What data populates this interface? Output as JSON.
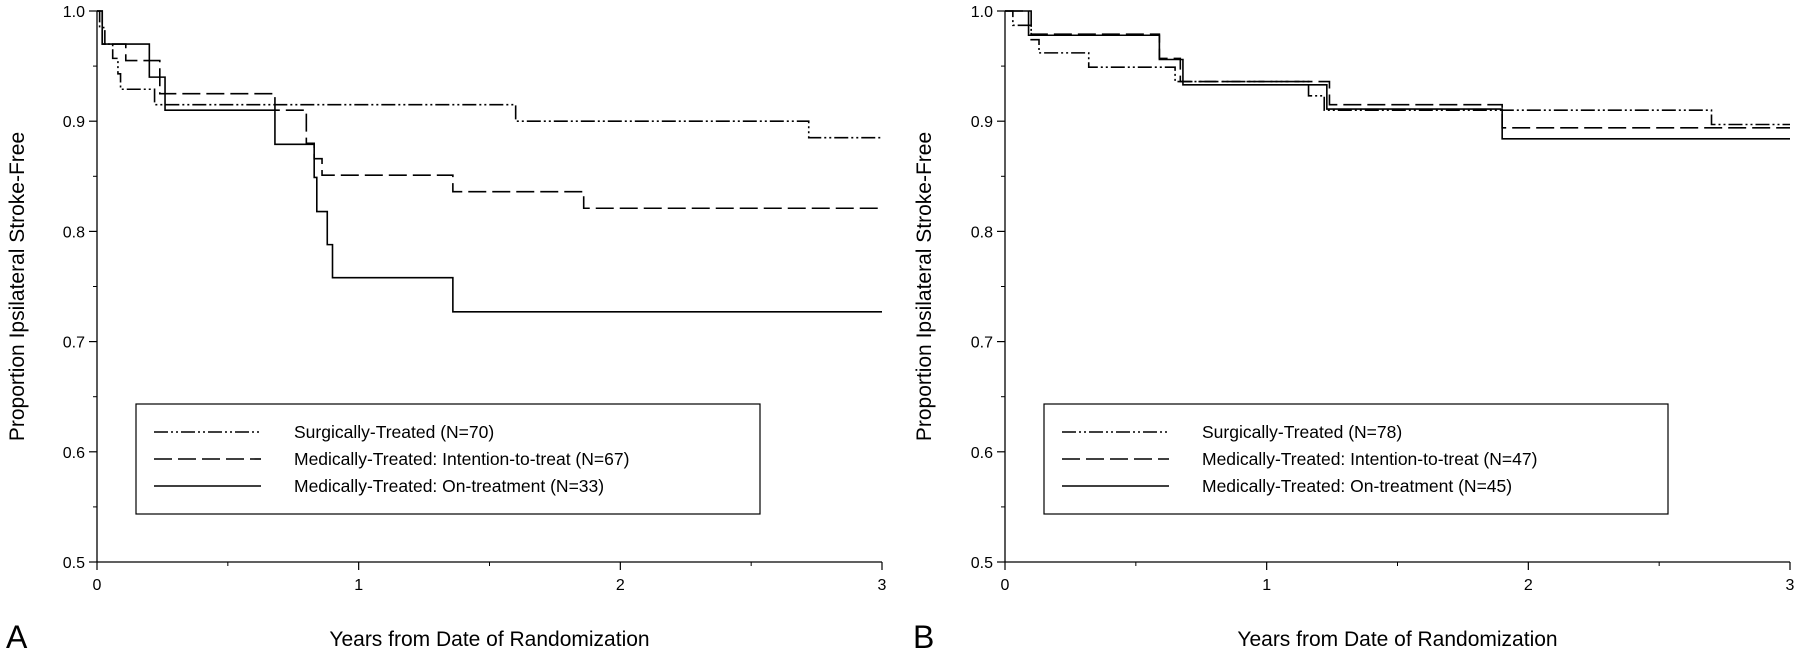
{
  "chart_data": [
    {
      "type": "line",
      "subtype": "step (Kaplan-Meier)",
      "panel_label": "A",
      "xlabel": "Years from Date of Randomization",
      "ylabel": "Proportion Ipsilateral Stroke-Free",
      "xlim": [
        0,
        3
      ],
      "ylim": [
        0.5,
        1.0
      ],
      "x_ticks": [
        "0",
        "1",
        "2",
        "3"
      ],
      "y_ticks": [
        "0.5",
        "0.6",
        "0.7",
        "0.8",
        "0.9",
        "1.0"
      ],
      "grid": false,
      "legend_position": "lower-left",
      "series": [
        {
          "name": "Surgically-Treated (N=70)",
          "style": "dash-dot-dot",
          "points": [
            [
              0,
              1.0
            ],
            [
              0.01,
              0.985
            ],
            [
              0.03,
              0.97
            ],
            [
              0.06,
              0.957
            ],
            [
              0.08,
              0.943
            ],
            [
              0.09,
              0.929
            ],
            [
              0.22,
              0.915
            ],
            [
              1.6,
              0.9
            ],
            [
              2.72,
              0.885
            ],
            [
              3.0,
              0.885
            ]
          ]
        },
        {
          "name": "Medically-Treated: Intention-to-treat (N=67)",
          "style": "long-dash",
          "points": [
            [
              0,
              1.0
            ],
            [
              0.02,
              0.97
            ],
            [
              0.11,
              0.955
            ],
            [
              0.24,
              0.925
            ],
            [
              0.68,
              0.91
            ],
            [
              0.8,
              0.88
            ],
            [
              0.83,
              0.866
            ],
            [
              0.86,
              0.851
            ],
            [
              1.36,
              0.836
            ],
            [
              1.86,
              0.821
            ],
            [
              3.0,
              0.821
            ]
          ]
        },
        {
          "name": "Medically-Treated: On-treatment (N=33)",
          "style": "solid",
          "points": [
            [
              0,
              1.0
            ],
            [
              0.02,
              0.97
            ],
            [
              0.2,
              0.94
            ],
            [
              0.26,
              0.91
            ],
            [
              0.68,
              0.879
            ],
            [
              0.83,
              0.849
            ],
            [
              0.84,
              0.818
            ],
            [
              0.88,
              0.788
            ],
            [
              0.9,
              0.758
            ],
            [
              1.36,
              0.727
            ],
            [
              3.0,
              0.727
            ]
          ]
        }
      ]
    },
    {
      "type": "line",
      "subtype": "step (Kaplan-Meier)",
      "panel_label": "B",
      "xlabel": "Years from Date of Randomization",
      "ylabel": "Proportion Ipsilateral Stroke-Free",
      "xlim": [
        0,
        3
      ],
      "ylim": [
        0.5,
        1.0
      ],
      "x_ticks": [
        "0",
        "1",
        "2",
        "3"
      ],
      "y_ticks": [
        "0.5",
        "0.6",
        "0.7",
        "0.8",
        "0.9",
        "1.0"
      ],
      "grid": false,
      "legend_position": "lower-left",
      "series": [
        {
          "name": "Surgically-Treated (N=78)",
          "style": "dash-dot-dot",
          "points": [
            [
              0,
              1.0
            ],
            [
              0.03,
              0.987
            ],
            [
              0.1,
              0.974
            ],
            [
              0.13,
              0.962
            ],
            [
              0.32,
              0.949
            ],
            [
              0.65,
              0.936
            ],
            [
              1.16,
              0.923
            ],
            [
              1.22,
              0.91
            ],
            [
              2.7,
              0.897
            ],
            [
              3.0,
              0.897
            ]
          ]
        },
        {
          "name": "Medically-Treated: Intention-to-treat (N=47)",
          "style": "long-dash",
          "points": [
            [
              0,
              1.0
            ],
            [
              0.1,
              0.979
            ],
            [
              0.59,
              0.957
            ],
            [
              0.67,
              0.936
            ],
            [
              1.24,
              0.915
            ],
            [
              1.9,
              0.894
            ],
            [
              3.0,
              0.894
            ]
          ]
        },
        {
          "name": "Medically-Treated: On-treatment (N=45)",
          "style": "solid",
          "points": [
            [
              0,
              1.0
            ],
            [
              0.09,
              0.978
            ],
            [
              0.59,
              0.956
            ],
            [
              0.68,
              0.933
            ],
            [
              1.23,
              0.911
            ],
            [
              1.9,
              0.884
            ],
            [
              3.0,
              0.884
            ]
          ]
        }
      ]
    }
  ]
}
